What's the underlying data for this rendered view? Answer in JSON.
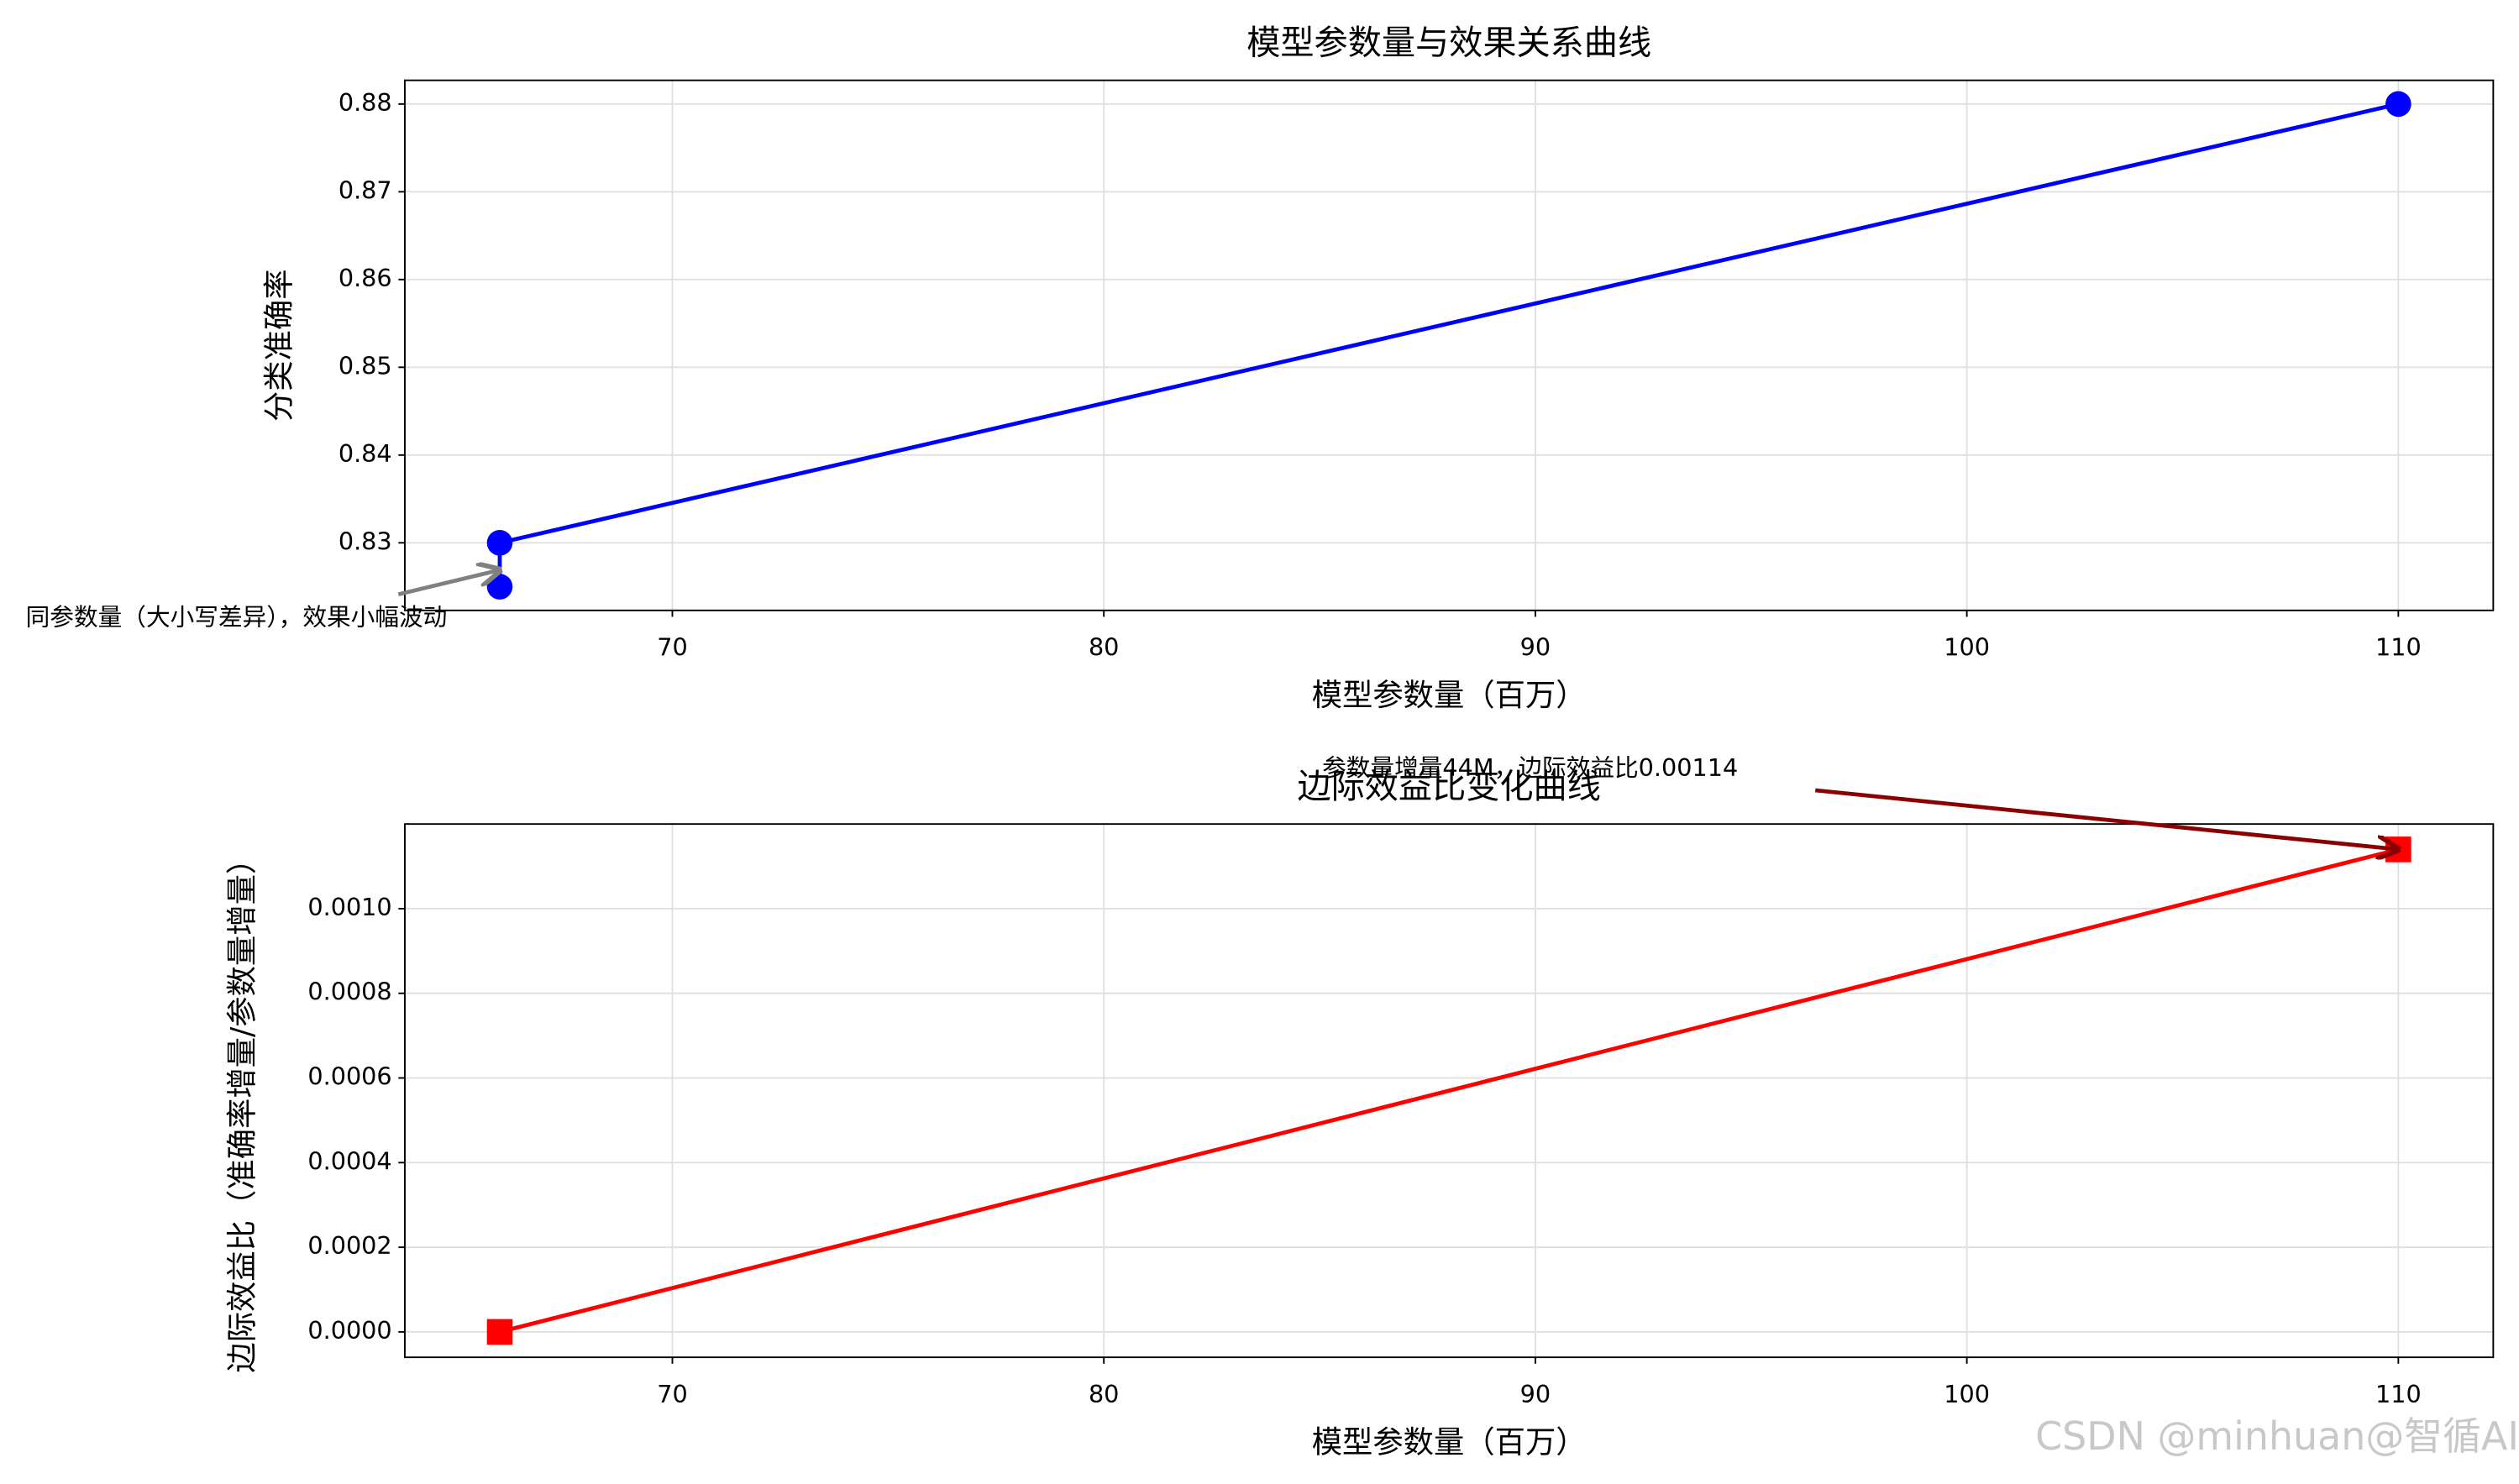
{
  "chart_data": [
    {
      "type": "line",
      "title": "模型参数量与效果关系曲线",
      "xlabel": "模型参数量（百万）",
      "ylabel": "分类准确率",
      "x": [
        66,
        66,
        110
      ],
      "series": [
        {
          "name": "分类准确率",
          "color": "#0000ff",
          "marker": "circle",
          "values": [
            0.825,
            0.83,
            0.88
          ]
        }
      ],
      "xlim": [
        63.8,
        112.2
      ],
      "xticks": [
        70,
        80,
        90,
        100,
        110
      ],
      "ylim": [
        0.8223,
        0.8827
      ],
      "yticks": [
        0.83,
        0.84,
        0.85,
        0.86,
        0.87,
        0.88
      ],
      "grid": true,
      "annotation": {
        "text": "同参数量（大小写差异），效果小幅波动",
        "xy": [
          66,
          0.8269
        ],
        "color": "#808080"
      }
    },
    {
      "type": "line",
      "title": "边际效益比变化曲线",
      "xlabel": "模型参数量（百万）",
      "ylabel": "边际效益比（准确率增量/参数量增量）",
      "x": [
        66,
        110
      ],
      "series": [
        {
          "name": "边际效益比",
          "color": "#ff0000",
          "marker": "square",
          "values": [
            0,
            0.00114
          ]
        }
      ],
      "xlim": [
        63.8,
        112.2
      ],
      "xticks": [
        70,
        80,
        90,
        100,
        110
      ],
      "ylim": [
        -6e-05,
        0.0012
      ],
      "yticks": [
        {
          "value": 0,
          "label": "0.0000"
        },
        {
          "value": 0.0002,
          "label": "0.0002"
        },
        {
          "value": 0.0004,
          "label": "0.0004"
        },
        {
          "value": 0.0006,
          "label": "0.0006"
        },
        {
          "value": 0.0008,
          "label": "0.0008"
        },
        {
          "value": 0.001,
          "label": "0.0010"
        }
      ],
      "grid": true,
      "annotation": {
        "text": "参数量增量44M，边际效益比0.00114",
        "xy": [
          110,
          0.00114
        ],
        "color": "#8b0000"
      }
    }
  ],
  "watermark": "CSDN @minhuan@智循AI"
}
